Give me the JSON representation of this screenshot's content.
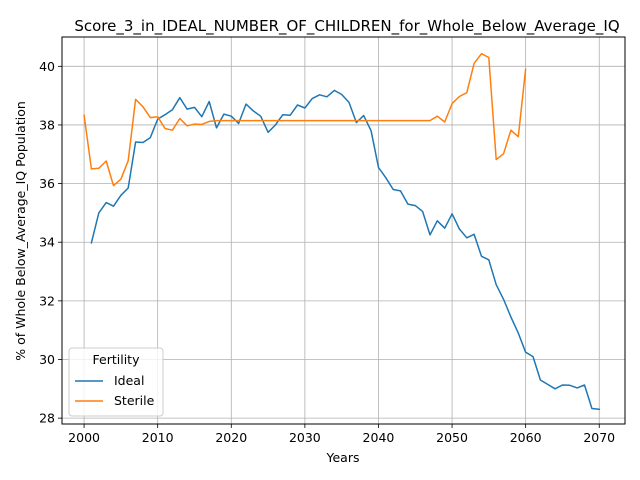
{
  "chart_data": {
    "type": "line",
    "title": "Score_3_in_IDEAL_NUMBER_OF_CHILDREN_for_Whole_Below_Average_IQ",
    "xlabel": "Years",
    "ylabel": "% of Whole Below_Average_IQ Population",
    "xlim": [
      1997,
      2073.5
    ],
    "ylim": [
      27.8,
      41.0
    ],
    "xticks": [
      2000,
      2010,
      2020,
      2030,
      2040,
      2050,
      2060,
      2070
    ],
    "yticks": [
      28,
      30,
      32,
      34,
      36,
      38,
      40
    ],
    "grid": true,
    "legend": {
      "title": "Fertility",
      "placement": "lower-left"
    },
    "series": [
      {
        "name": "Ideal",
        "color": "#1f77b4",
        "x": [
          2001,
          2002,
          2003,
          2004,
          2005,
          2006,
          2007,
          2008,
          2009,
          2010,
          2011,
          2012,
          2013,
          2014,
          2015,
          2016,
          2017,
          2018,
          2019,
          2020,
          2021,
          2022,
          2023,
          2024,
          2025,
          2026,
          2027,
          2028,
          2029,
          2030,
          2031,
          2032,
          2033,
          2034,
          2035,
          2036,
          2037,
          2038,
          2039,
          2040,
          2041,
          2042,
          2043,
          2044,
          2045,
          2046,
          2047,
          2048,
          2049,
          2050,
          2051,
          2052,
          2053,
          2054,
          2055,
          2056,
          2057,
          2058,
          2059,
          2060,
          2061,
          2062,
          2063,
          2064,
          2065,
          2066,
          2067,
          2068,
          2069,
          2070
        ],
        "values": [
          33.98,
          35.0,
          35.35,
          35.23,
          35.6,
          35.85,
          37.42,
          37.4,
          37.57,
          38.2,
          38.35,
          38.52,
          38.93,
          38.54,
          38.6,
          38.28,
          38.8,
          37.9,
          38.37,
          38.3,
          38.05,
          38.71,
          38.48,
          38.3,
          37.75,
          38.0,
          38.35,
          38.33,
          38.68,
          38.58,
          38.9,
          39.03,
          38.96,
          39.18,
          39.04,
          38.77,
          38.08,
          38.32,
          37.8,
          36.55,
          36.2,
          35.8,
          35.75,
          35.3,
          35.25,
          35.05,
          34.25,
          34.73,
          34.48,
          34.97,
          34.45,
          34.15,
          34.27,
          33.52,
          33.4,
          32.55,
          32.05,
          31.45,
          30.9,
          30.25,
          30.1,
          29.3,
          29.15,
          29.0,
          29.13,
          29.12,
          29.03,
          29.13,
          28.33,
          28.3
        ]
      },
      {
        "name": "Sterile",
        "color": "#ff7f0e",
        "x": [
          2000,
          2001,
          2002,
          2003,
          2004,
          2005,
          2006,
          2007,
          2008,
          2009,
          2010,
          2011,
          2012,
          2013,
          2014,
          2015,
          2016,
          2017,
          2018,
          2019,
          2020,
          2021,
          2022,
          2023,
          2024,
          2025,
          2026,
          2027,
          2028,
          2029,
          2030,
          2031,
          2032,
          2033,
          2034,
          2035,
          2036,
          2037,
          2038,
          2039,
          2040,
          2041,
          2042,
          2043,
          2044,
          2045,
          2046,
          2047,
          2048,
          2049,
          2050,
          2051,
          2052,
          2053,
          2054,
          2055,
          2056,
          2057,
          2058,
          2059,
          2060
        ],
        "values": [
          38.33,
          36.5,
          36.52,
          36.77,
          35.93,
          36.15,
          36.78,
          38.87,
          38.62,
          38.25,
          38.28,
          37.88,
          37.82,
          38.22,
          37.97,
          38.03,
          38.02,
          38.12,
          38.15,
          38.15,
          38.15,
          38.15,
          38.15,
          38.15,
          38.15,
          38.15,
          38.15,
          38.15,
          38.15,
          38.15,
          38.15,
          38.15,
          38.15,
          38.15,
          38.15,
          38.15,
          38.15,
          38.15,
          38.15,
          38.15,
          38.15,
          38.15,
          38.15,
          38.15,
          38.15,
          38.15,
          38.15,
          38.15,
          38.3,
          38.1,
          38.73,
          38.97,
          39.1,
          40.1,
          40.43,
          40.3,
          36.82,
          37.02,
          37.82,
          37.6,
          39.9
        ]
      }
    ]
  }
}
